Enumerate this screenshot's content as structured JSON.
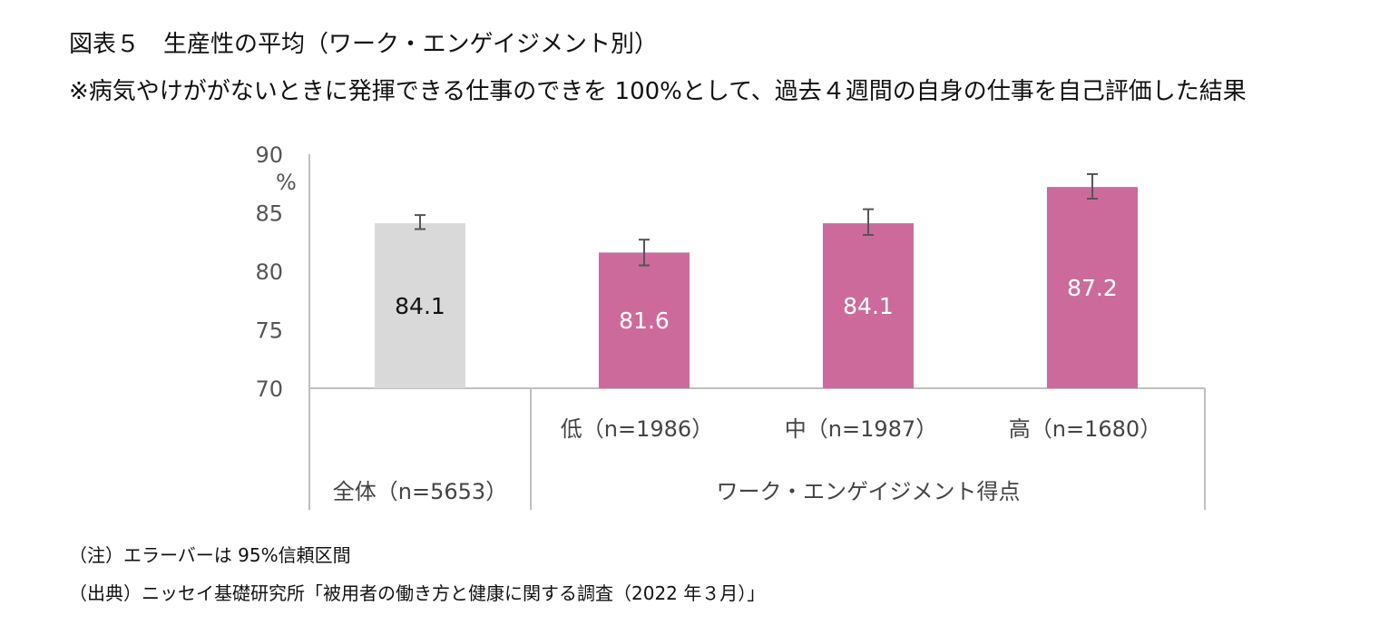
{
  "title": "図表５　生産性の平均（ワーク・エンゲイジメント別）",
  "subtitle": "※病気やけががないときに発揮できる仕事のできを 100%として、過去４週間の自身の仕事を自己評価した結果",
  "notes": {
    "note": "（注）エラーバーは 95%信頼区間",
    "source": "（出典）ニッセイ基礎研究所「被用者の働き方と健康に関する調査（2022 年３月）」"
  },
  "chart_data": {
    "type": "bar",
    "ylabel": "%",
    "ylim": [
      70,
      90
    ],
    "yticks": [
      "70",
      "75",
      "80",
      "85",
      "90"
    ],
    "categories": [
      "全体（n=5653）",
      "低（n=1986）",
      "中（n=1987）",
      "高（n=1680）"
    ],
    "values": [
      84.1,
      81.6,
      84.1,
      87.2
    ],
    "value_labels": [
      "84.1",
      "81.6",
      "84.1",
      "87.2"
    ],
    "error_low": [
      83.6,
      80.5,
      83.1,
      86.2
    ],
    "error_high": [
      84.8,
      82.7,
      85.3,
      88.3
    ],
    "group_label": "ワーク・エンゲイジメント得点",
    "colors": {
      "overall": "#d9d9d9",
      "engagement": "#cc6b9b",
      "error_bar": "#555555",
      "axis": "#bfbfbf"
    }
  }
}
